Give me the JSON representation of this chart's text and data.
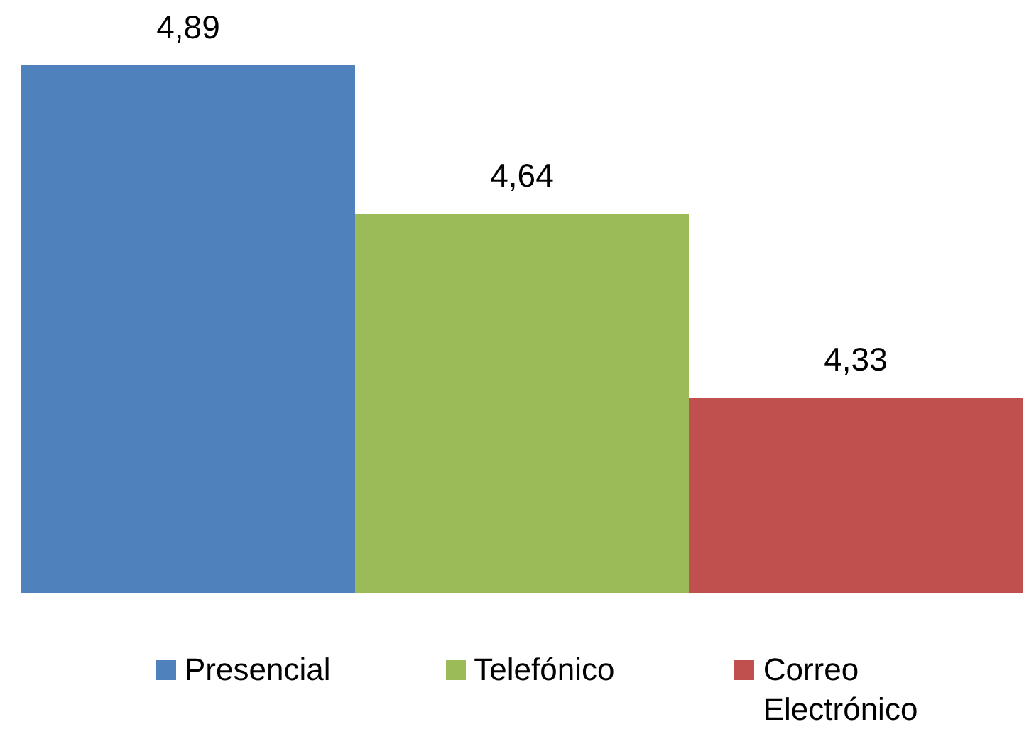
{
  "chart_data": {
    "type": "bar",
    "categories": [
      null
    ],
    "series": [
      {
        "name": "Presencial",
        "color": "#4f81bd",
        "values": [
          4.89
        ],
        "value_labels": [
          "4,89"
        ]
      },
      {
        "name": "Telefónico",
        "color": "#9bbb59",
        "values": [
          4.64
        ],
        "value_labels": [
          "4,64"
        ]
      },
      {
        "name": "Correo Electrónico",
        "color": "#c0504d",
        "values": [
          4.33
        ],
        "value_labels": [
          "4,33"
        ]
      }
    ],
    "ylim": [
      4,
      5
    ],
    "tick_labels": false,
    "legend": "bottom"
  }
}
